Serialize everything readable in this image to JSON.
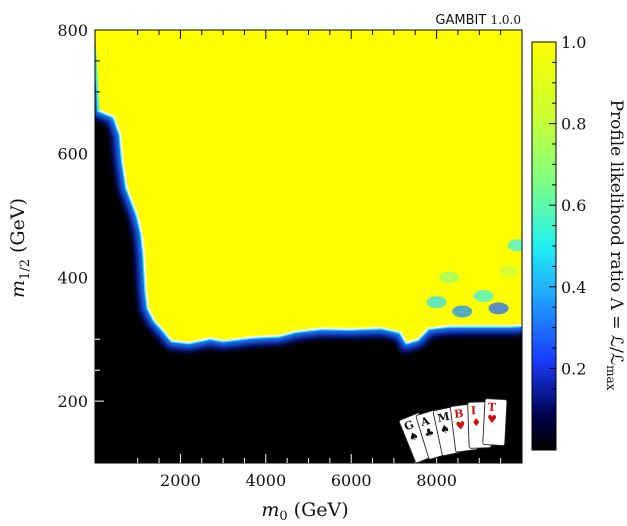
{
  "chart_data": {
    "type": "heatmap",
    "xlabel": "m0 (GeV)",
    "ylabel": "m1/2 (GeV)",
    "xlim": [
      0,
      10000
    ],
    "ylim": [
      100,
      800
    ],
    "xticks": [
      2000,
      4000,
      6000,
      8000
    ],
    "xtick_labels": [
      "2000",
      "4000",
      "6000",
      "8000"
    ],
    "yticks": [
      200,
      400,
      600,
      800
    ],
    "ytick_labels": [
      "200",
      "400",
      "600",
      "800"
    ],
    "colorbar": {
      "label": "Profile likelihood ratio Λ = ℒ/ℒmax",
      "ticks": [
        0.2,
        0.4,
        0.6,
        0.8,
        1.0
      ],
      "tick_labels": [
        "0.2",
        "0.4",
        "0.6",
        "0.8",
        "1.0"
      ],
      "range": [
        0,
        1
      ]
    },
    "boundary_contour": {
      "description_color": "#ffffff",
      "points": [
        [
          100,
          670
        ],
        [
          450,
          660
        ],
        [
          600,
          630
        ],
        [
          650,
          590
        ],
        [
          750,
          545
        ],
        [
          1000,
          500
        ],
        [
          1100,
          470
        ],
        [
          1150,
          440
        ],
        [
          1200,
          380
        ],
        [
          1250,
          350
        ],
        [
          1400,
          330
        ],
        [
          1600,
          315
        ],
        [
          1800,
          298
        ],
        [
          2200,
          295
        ],
        [
          2700,
          302
        ],
        [
          3000,
          298
        ],
        [
          3700,
          304
        ],
        [
          4300,
          306
        ],
        [
          4700,
          313
        ],
        [
          5300,
          318
        ],
        [
          6000,
          317
        ],
        [
          6700,
          319
        ],
        [
          7150,
          312
        ],
        [
          7300,
          295
        ],
        [
          7550,
          300
        ],
        [
          7800,
          318
        ],
        [
          8300,
          322
        ],
        [
          9000,
          322
        ],
        [
          9700,
          322
        ],
        [
          10000,
          323
        ]
      ]
    },
    "region_inside_value": 1.0,
    "region_outside_value": 0.0
  },
  "watermark": {
    "brand": "GAMBIT",
    "version": "1.0.0",
    "cards": [
      "G",
      "A",
      "M",
      "B",
      "I",
      "T"
    ]
  },
  "colors": {
    "yellow": "#ffff00",
    "background_dark": "#000000",
    "contour": "#ffffff"
  }
}
